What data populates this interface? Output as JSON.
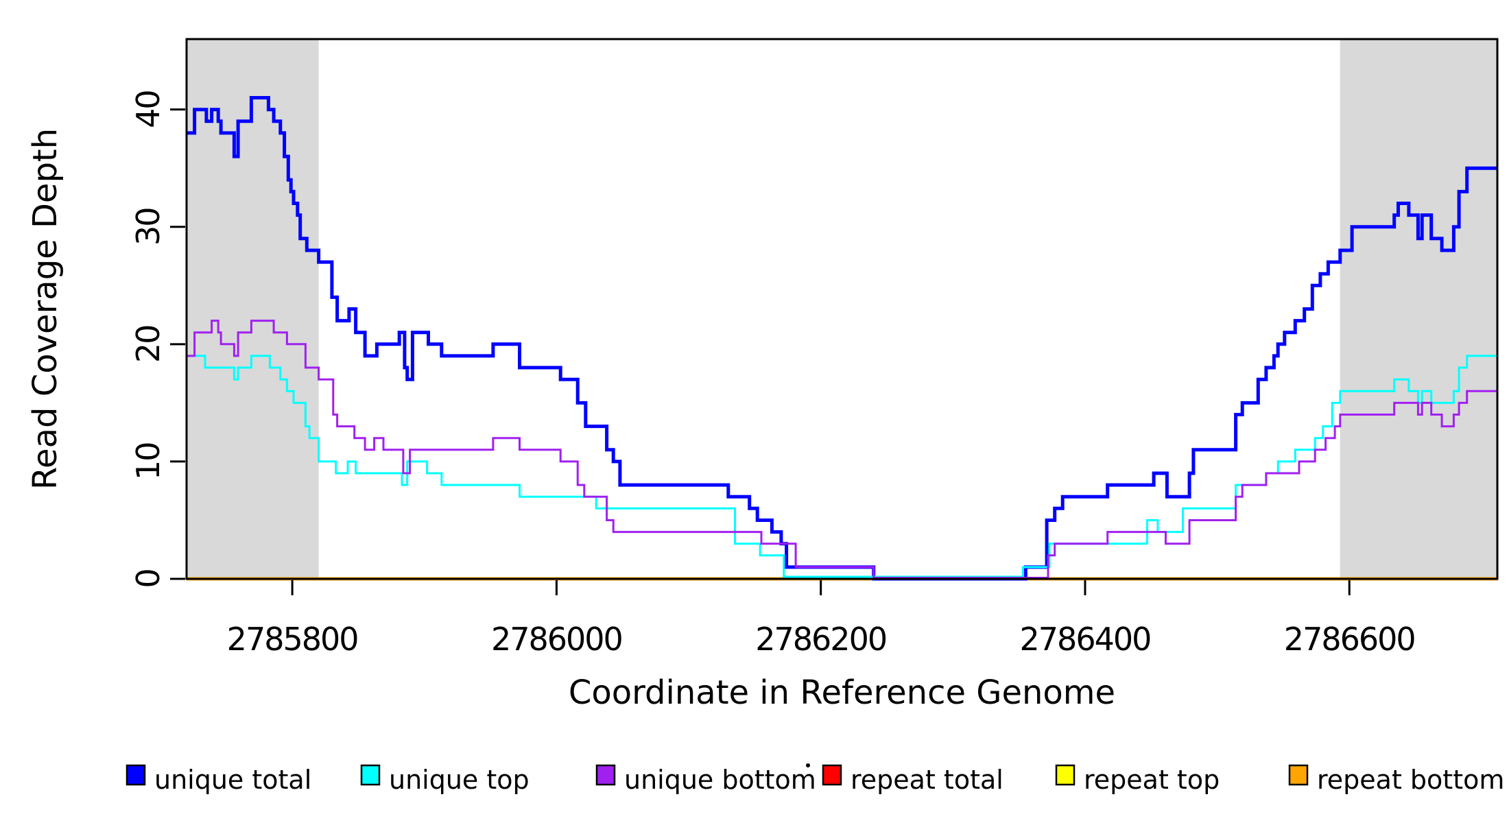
{
  "chart_data": {
    "type": "line",
    "subtype": "step-coverage-plot",
    "title": "",
    "xlabel": "Coordinate in Reference Genome",
    "ylabel": "Read Coverage Depth",
    "xlim": [
      2785720,
      2786712
    ],
    "ylim": [
      0,
      46
    ],
    "x_ticks": [
      2785800,
      2786000,
      2786200,
      2786400,
      2786600
    ],
    "x_tick_labels": [
      "2785800",
      "2786000",
      "2786200",
      "2786400",
      "2786600"
    ],
    "y_ticks": [
      0,
      10,
      20,
      30,
      40
    ],
    "y_tick_labels": [
      "0",
      "10",
      "20",
      "30",
      "40"
    ],
    "grid": false,
    "legend_position": "bottom",
    "background_color": "#ffffff",
    "shaded_regions": [
      {
        "name": "left-repeat-region",
        "x0": 2785720,
        "x1": 2785820,
        "color": "#d9d9d9"
      },
      {
        "name": "right-repeat-region",
        "x0": 2786593,
        "x1": 2786712,
        "color": "#d9d9d9"
      }
    ],
    "draw_order": [
      "repeat total",
      "repeat top",
      "repeat bottom",
      "unique total",
      "unique top",
      "unique bottom"
    ],
    "series": [
      {
        "name": "unique total",
        "color": "#0000ff",
        "line_width": 5,
        "steps": [
          [
            2785720,
            38
          ],
          [
            2785726,
            40
          ],
          [
            2785735,
            39
          ],
          [
            2785739,
            40
          ],
          [
            2785744,
            39
          ],
          [
            2785746,
            38
          ],
          [
            2785756,
            36
          ],
          [
            2785759,
            39
          ],
          [
            2785769,
            41
          ],
          [
            2785782,
            40
          ],
          [
            2785786,
            39
          ],
          [
            2785791,
            38
          ],
          [
            2785794,
            36
          ],
          [
            2785797,
            34
          ],
          [
            2785799,
            33
          ],
          [
            2785801,
            32
          ],
          [
            2785804,
            31
          ],
          [
            2785806,
            29
          ],
          [
            2785811,
            28
          ],
          [
            2785820,
            27
          ],
          [
            2785830,
            24
          ],
          [
            2785834,
            22
          ],
          [
            2785843,
            23
          ],
          [
            2785848,
            21
          ],
          [
            2785855,
            19
          ],
          [
            2785864,
            20
          ],
          [
            2785881,
            21
          ],
          [
            2785885,
            18
          ],
          [
            2785887,
            17
          ],
          [
            2785891,
            21
          ],
          [
            2785903,
            20
          ],
          [
            2785913,
            19
          ],
          [
            2785952,
            20
          ],
          [
            2785972,
            18
          ],
          [
            2786003,
            17
          ],
          [
            2786016,
            15
          ],
          [
            2786022,
            13
          ],
          [
            2786038,
            11
          ],
          [
            2786043,
            10
          ],
          [
            2786048,
            8
          ],
          [
            2786130,
            7
          ],
          [
            2786146,
            6
          ],
          [
            2786152,
            5
          ],
          [
            2786163,
            4
          ],
          [
            2786170,
            3
          ],
          [
            2786174,
            1
          ],
          [
            2786240,
            0
          ],
          [
            2786355,
            1
          ],
          [
            2786371,
            5
          ],
          [
            2786377,
            6
          ],
          [
            2786383,
            7
          ],
          [
            2786417,
            8
          ],
          [
            2786452,
            9
          ],
          [
            2786462,
            7
          ],
          [
            2786479,
            9
          ],
          [
            2786482,
            11
          ],
          [
            2786514,
            14
          ],
          [
            2786519,
            15
          ],
          [
            2786531,
            17
          ],
          [
            2786537,
            18
          ],
          [
            2786543,
            19
          ],
          [
            2786546,
            20
          ],
          [
            2786551,
            21
          ],
          [
            2786559,
            22
          ],
          [
            2786566,
            23
          ],
          [
            2786572,
            25
          ],
          [
            2786578,
            26
          ],
          [
            2786584,
            27
          ],
          [
            2786593,
            28
          ],
          [
            2786602,
            30
          ],
          [
            2786634,
            31
          ],
          [
            2786637,
            32
          ],
          [
            2786645,
            31
          ],
          [
            2786652,
            29
          ],
          [
            2786655,
            31
          ],
          [
            2786662,
            29
          ],
          [
            2786670,
            28
          ],
          [
            2786679,
            30
          ],
          [
            2786683,
            33
          ],
          [
            2786689,
            35
          ]
        ]
      },
      {
        "name": "unique top",
        "color": "#00ffff",
        "line_width": 3,
        "steps": [
          [
            2785720,
            19
          ],
          [
            2785734,
            18
          ],
          [
            2785756,
            17
          ],
          [
            2785759,
            18
          ],
          [
            2785769,
            19
          ],
          [
            2785783,
            18
          ],
          [
            2785791,
            17
          ],
          [
            2785796,
            16
          ],
          [
            2785801,
            15
          ],
          [
            2785810,
            13
          ],
          [
            2785813,
            12
          ],
          [
            2785820,
            10
          ],
          [
            2785833,
            9
          ],
          [
            2785842,
            10
          ],
          [
            2785848,
            9
          ],
          [
            2785883,
            8
          ],
          [
            2785887,
            10
          ],
          [
            2785902,
            9
          ],
          [
            2785913,
            8
          ],
          [
            2785972,
            7
          ],
          [
            2786030,
            6
          ],
          [
            2786135,
            3
          ],
          [
            2786154,
            2
          ],
          [
            2786172,
            0
          ],
          [
            2786353,
            1
          ],
          [
            2786373,
            3
          ],
          [
            2786447,
            5
          ],
          [
            2786455,
            4
          ],
          [
            2786474,
            6
          ],
          [
            2786514,
            8
          ],
          [
            2786537,
            9
          ],
          [
            2786546,
            10
          ],
          [
            2786559,
            11
          ],
          [
            2786574,
            12
          ],
          [
            2786580,
            13
          ],
          [
            2786587,
            15
          ],
          [
            2786593,
            16
          ],
          [
            2786634,
            17
          ],
          [
            2786645,
            16
          ],
          [
            2786652,
            15
          ],
          [
            2786655,
            16
          ],
          [
            2786662,
            15
          ],
          [
            2786679,
            16
          ],
          [
            2786683,
            18
          ],
          [
            2786689,
            19
          ]
        ]
      },
      {
        "name": "unique bottom",
        "color": "#a020f0",
        "line_width": 3,
        "steps": [
          [
            2785720,
            19
          ],
          [
            2785726,
            21
          ],
          [
            2785739,
            22
          ],
          [
            2785744,
            21
          ],
          [
            2785746,
            20
          ],
          [
            2785756,
            19
          ],
          [
            2785759,
            21
          ],
          [
            2785769,
            22
          ],
          [
            2785786,
            21
          ],
          [
            2785796,
            20
          ],
          [
            2785810,
            18
          ],
          [
            2785820,
            17
          ],
          [
            2785831,
            14
          ],
          [
            2785834,
            13
          ],
          [
            2785847,
            12
          ],
          [
            2785855,
            11
          ],
          [
            2785862,
            12
          ],
          [
            2785869,
            11
          ],
          [
            2785884,
            9
          ],
          [
            2785889,
            11
          ],
          [
            2785952,
            12
          ],
          [
            2785972,
            11
          ],
          [
            2786003,
            10
          ],
          [
            2786016,
            8
          ],
          [
            2786021,
            7
          ],
          [
            2786038,
            5
          ],
          [
            2786043,
            4
          ],
          [
            2786155,
            3
          ],
          [
            2786181,
            1
          ],
          [
            2786240,
            0
          ],
          [
            2786372,
            2
          ],
          [
            2786377,
            3
          ],
          [
            2786417,
            4
          ],
          [
            2786461,
            3
          ],
          [
            2786479,
            5
          ],
          [
            2786514,
            7
          ],
          [
            2786519,
            8
          ],
          [
            2786537,
            9
          ],
          [
            2786562,
            10
          ],
          [
            2786574,
            11
          ],
          [
            2786582,
            12
          ],
          [
            2786589,
            13
          ],
          [
            2786593,
            14
          ],
          [
            2786634,
            15
          ],
          [
            2786652,
            14
          ],
          [
            2786655,
            15
          ],
          [
            2786662,
            14
          ],
          [
            2786670,
            13
          ],
          [
            2786679,
            14
          ],
          [
            2786683,
            15
          ],
          [
            2786689,
            16
          ]
        ]
      },
      {
        "name": "repeat total",
        "color": "#ff0000",
        "line_width": 3,
        "steps": [
          [
            2785720,
            0
          ]
        ]
      },
      {
        "name": "repeat top",
        "color": "#ffff00",
        "line_width": 3,
        "steps": [
          [
            2785720,
            0
          ]
        ]
      },
      {
        "name": "repeat bottom",
        "color": "#ffa500",
        "line_width": 5,
        "steps": [
          [
            2785720,
            0
          ]
        ]
      }
    ],
    "legend": {
      "items": [
        {
          "label": "unique total",
          "color": "#0000ff"
        },
        {
          "label": "unique top",
          "color": "#00ffff"
        },
        {
          "label": "unique bottom",
          "color": "#a020f0"
        },
        {
          "label": "repeat total",
          "color": "#ff0000"
        },
        {
          "label": "repeat top",
          "color": "#ffff00"
        },
        {
          "label": "repeat bottom",
          "color": "#ffa500"
        }
      ]
    }
  }
}
